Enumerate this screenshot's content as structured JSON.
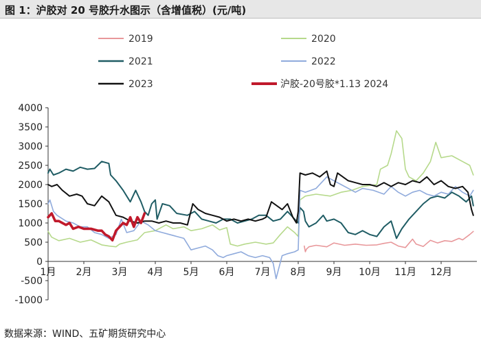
{
  "title": "图 1：沪胶对 20 号胶升水图示（含增值税）(元/吨)",
  "source": "数据来源：WIND、五矿期货研究中心",
  "chart_data": {
    "type": "line",
    "y_range": [
      -1000,
      4000
    ],
    "y_ticks": [
      "4000",
      "3500",
      "3000",
      "2500",
      "2000",
      "1500",
      "1000",
      "500",
      "0",
      "-500",
      "-1000"
    ],
    "x_range": [
      1,
      13
    ],
    "x_ticks": [
      "1月",
      "2月",
      "3月",
      "4月",
      "5月",
      "6月",
      "7月",
      "8月",
      "9月",
      "10月",
      "11月",
      "12月"
    ],
    "grid": false,
    "legend_position": "top",
    "series": [
      {
        "name": "2019",
        "color": "#e8979a",
        "width": 1.6,
        "points": [
          [
            8.17,
            400
          ],
          [
            8.2,
            250
          ],
          [
            8.23,
            320
          ],
          [
            8.3,
            380
          ],
          [
            8.5,
            420
          ],
          [
            8.8,
            380
          ],
          [
            9.0,
            480
          ],
          [
            9.3,
            420
          ],
          [
            9.6,
            450
          ],
          [
            9.9,
            420
          ],
          [
            10.2,
            430
          ],
          [
            10.4,
            470
          ],
          [
            10.6,
            500
          ],
          [
            10.8,
            400
          ],
          [
            11.0,
            360
          ],
          [
            11.2,
            580
          ],
          [
            11.3,
            450
          ],
          [
            11.5,
            390
          ],
          [
            11.7,
            550
          ],
          [
            11.9,
            480
          ],
          [
            12.1,
            540
          ],
          [
            12.3,
            520
          ],
          [
            12.5,
            600
          ],
          [
            12.6,
            560
          ],
          [
            12.8,
            700
          ],
          [
            12.9,
            780
          ]
        ]
      },
      {
        "name": "2020",
        "color": "#b6d98b",
        "width": 1.6,
        "points": [
          [
            1.0,
            780
          ],
          [
            1.1,
            630
          ],
          [
            1.3,
            540
          ],
          [
            1.6,
            600
          ],
          [
            1.9,
            500
          ],
          [
            2.2,
            560
          ],
          [
            2.5,
            430
          ],
          [
            2.7,
            400
          ],
          [
            2.9,
            380
          ],
          [
            3.0,
            450
          ],
          [
            3.2,
            500
          ],
          [
            3.5,
            560
          ],
          [
            3.7,
            750
          ],
          [
            4.0,
            800
          ],
          [
            4.3,
            950
          ],
          [
            4.5,
            850
          ],
          [
            4.8,
            900
          ],
          [
            5.0,
            800
          ],
          [
            5.3,
            850
          ],
          [
            5.6,
            950
          ],
          [
            5.8,
            820
          ],
          [
            6.0,
            880
          ],
          [
            6.1,
            450
          ],
          [
            6.3,
            400
          ],
          [
            6.5,
            450
          ],
          [
            6.8,
            500
          ],
          [
            7.1,
            450
          ],
          [
            7.3,
            480
          ],
          [
            7.5,
            700
          ],
          [
            7.7,
            900
          ],
          [
            7.9,
            750
          ],
          [
            8.0,
            650
          ],
          [
            8.05,
            1600
          ],
          [
            8.2,
            1700
          ],
          [
            8.5,
            1750
          ],
          [
            8.9,
            1700
          ],
          [
            9.2,
            1800
          ],
          [
            9.5,
            1850
          ],
          [
            9.8,
            1950
          ],
          [
            10.2,
            2000
          ],
          [
            10.3,
            2400
          ],
          [
            10.5,
            2500
          ],
          [
            10.6,
            2800
          ],
          [
            10.75,
            3400
          ],
          [
            10.9,
            3200
          ],
          [
            11.0,
            2400
          ],
          [
            11.1,
            2200
          ],
          [
            11.3,
            2100
          ],
          [
            11.5,
            2300
          ],
          [
            11.7,
            2600
          ],
          [
            11.85,
            3100
          ],
          [
            12.0,
            2700
          ],
          [
            12.3,
            2750
          ],
          [
            12.6,
            2600
          ],
          [
            12.8,
            2500
          ],
          [
            12.9,
            2250
          ]
        ]
      },
      {
        "name": "2021",
        "color": "#1f5c64",
        "width": 2.0,
        "points": [
          [
            1.0,
            2300
          ],
          [
            1.05,
            2400
          ],
          [
            1.15,
            2250
          ],
          [
            1.3,
            2300
          ],
          [
            1.5,
            2400
          ],
          [
            1.7,
            2350
          ],
          [
            1.9,
            2450
          ],
          [
            2.1,
            2400
          ],
          [
            2.3,
            2420
          ],
          [
            2.5,
            2600
          ],
          [
            2.7,
            2550
          ],
          [
            2.75,
            2250
          ],
          [
            2.9,
            2100
          ],
          [
            3.1,
            1850
          ],
          [
            3.2,
            1700
          ],
          [
            3.3,
            1550
          ],
          [
            3.45,
            1850
          ],
          [
            3.6,
            1550
          ],
          [
            3.7,
            1300
          ],
          [
            3.8,
            1200
          ],
          [
            3.9,
            1500
          ],
          [
            4.0,
            1600
          ],
          [
            4.05,
            1100
          ],
          [
            4.2,
            1500
          ],
          [
            4.4,
            1450
          ],
          [
            4.6,
            1250
          ],
          [
            4.9,
            1200
          ],
          [
            5.1,
            1300
          ],
          [
            5.3,
            1100
          ],
          [
            5.5,
            1050
          ],
          [
            5.7,
            1000
          ],
          [
            5.9,
            1100
          ],
          [
            6.1,
            1100
          ],
          [
            6.3,
            1000
          ],
          [
            6.5,
            1050
          ],
          [
            6.7,
            1100
          ],
          [
            6.9,
            1200
          ],
          [
            7.1,
            1200
          ],
          [
            7.3,
            1050
          ],
          [
            7.5,
            1100
          ],
          [
            7.7,
            1300
          ],
          [
            7.9,
            1100
          ],
          [
            8.0,
            1000
          ],
          [
            8.05,
            1400
          ],
          [
            8.15,
            1300
          ],
          [
            8.2,
            1050
          ],
          [
            8.3,
            900
          ],
          [
            8.5,
            1000
          ],
          [
            8.7,
            1200
          ],
          [
            8.8,
            1050
          ],
          [
            9.0,
            1100
          ],
          [
            9.2,
            1000
          ],
          [
            9.4,
            750
          ],
          [
            9.6,
            700
          ],
          [
            9.8,
            800
          ],
          [
            10.0,
            700
          ],
          [
            10.2,
            650
          ],
          [
            10.4,
            900
          ],
          [
            10.6,
            1050
          ],
          [
            10.75,
            600
          ],
          [
            10.9,
            850
          ],
          [
            11.1,
            1100
          ],
          [
            11.3,
            1300
          ],
          [
            11.5,
            1500
          ],
          [
            11.7,
            1650
          ],
          [
            11.9,
            1700
          ],
          [
            12.1,
            1650
          ],
          [
            12.3,
            1800
          ],
          [
            12.5,
            1700
          ],
          [
            12.7,
            1550
          ],
          [
            12.85,
            1700
          ],
          [
            12.9,
            1450
          ]
        ]
      },
      {
        "name": "2022",
        "color": "#8faadc",
        "width": 1.6,
        "points": [
          [
            1.0,
            1500
          ],
          [
            1.05,
            1600
          ],
          [
            1.15,
            1300
          ],
          [
            1.25,
            1200
          ],
          [
            1.5,
            1050
          ],
          [
            1.7,
            1000
          ],
          [
            1.9,
            900
          ],
          [
            2.1,
            900
          ],
          [
            2.3,
            750
          ],
          [
            2.5,
            700
          ],
          [
            2.7,
            600
          ],
          [
            2.9,
            700
          ],
          [
            3.05,
            1100
          ],
          [
            3.2,
            750
          ],
          [
            3.4,
            800
          ],
          [
            3.6,
            1050
          ],
          [
            3.8,
            950
          ],
          [
            4.0,
            800
          ],
          [
            4.2,
            750
          ],
          [
            4.4,
            700
          ],
          [
            4.6,
            650
          ],
          [
            4.8,
            600
          ],
          [
            5.0,
            300
          ],
          [
            5.2,
            350
          ],
          [
            5.4,
            400
          ],
          [
            5.6,
            300
          ],
          [
            5.75,
            150
          ],
          [
            5.9,
            100
          ],
          [
            6.0,
            150
          ],
          [
            6.2,
            200
          ],
          [
            6.4,
            250
          ],
          [
            6.6,
            150
          ],
          [
            6.8,
            100
          ],
          [
            7.0,
            150
          ],
          [
            7.2,
            100
          ],
          [
            7.3,
            -50
          ],
          [
            7.38,
            -450
          ],
          [
            7.45,
            -200
          ],
          [
            7.55,
            150
          ],
          [
            7.7,
            200
          ],
          [
            7.9,
            250
          ],
          [
            8.0,
            300
          ],
          [
            8.05,
            1850
          ],
          [
            8.2,
            1800
          ],
          [
            8.5,
            1900
          ],
          [
            8.8,
            2200
          ],
          [
            9.0,
            2100
          ],
          [
            9.2,
            2000
          ],
          [
            9.4,
            1900
          ],
          [
            9.6,
            1800
          ],
          [
            9.8,
            1900
          ],
          [
            10.1,
            1850
          ],
          [
            10.4,
            1750
          ],
          [
            10.6,
            1950
          ],
          [
            10.8,
            1800
          ],
          [
            11.0,
            1700
          ],
          [
            11.2,
            1800
          ],
          [
            11.4,
            1850
          ],
          [
            11.6,
            1750
          ],
          [
            11.8,
            1700
          ],
          [
            12.0,
            1800
          ],
          [
            12.2,
            1750
          ],
          [
            12.4,
            1950
          ],
          [
            12.6,
            1800
          ],
          [
            12.8,
            1700
          ],
          [
            12.9,
            1850
          ]
        ]
      },
      {
        "name": "2023",
        "color": "#111111",
        "width": 2.0,
        "points": [
          [
            1.0,
            2000
          ],
          [
            1.1,
            1950
          ],
          [
            1.25,
            2000
          ],
          [
            1.4,
            1850
          ],
          [
            1.6,
            1700
          ],
          [
            1.8,
            1750
          ],
          [
            1.95,
            1700
          ],
          [
            2.1,
            1500
          ],
          [
            2.3,
            1450
          ],
          [
            2.5,
            1700
          ],
          [
            2.7,
            1550
          ],
          [
            2.9,
            1200
          ],
          [
            3.1,
            1150
          ],
          [
            3.3,
            1050
          ],
          [
            3.5,
            1000
          ],
          [
            3.7,
            1050
          ],
          [
            3.9,
            1050
          ],
          [
            4.1,
            1000
          ],
          [
            4.3,
            1050
          ],
          [
            4.5,
            1000
          ],
          [
            4.7,
            1000
          ],
          [
            4.9,
            950
          ],
          [
            5.05,
            1500
          ],
          [
            5.2,
            1350
          ],
          [
            5.4,
            1250
          ],
          [
            5.6,
            1200
          ],
          [
            5.8,
            1150
          ],
          [
            6.0,
            1050
          ],
          [
            6.2,
            1100
          ],
          [
            6.4,
            1050
          ],
          [
            6.6,
            1100
          ],
          [
            6.8,
            1050
          ],
          [
            7.0,
            1100
          ],
          [
            7.1,
            1150
          ],
          [
            7.25,
            1550
          ],
          [
            7.4,
            1450
          ],
          [
            7.55,
            1350
          ],
          [
            7.7,
            1500
          ],
          [
            7.85,
            1150
          ],
          [
            7.95,
            1000
          ],
          [
            8.0,
            1300
          ],
          [
            8.05,
            2300
          ],
          [
            8.2,
            2250
          ],
          [
            8.4,
            2300
          ],
          [
            8.6,
            2200
          ],
          [
            8.8,
            2350
          ],
          [
            8.9,
            2000
          ],
          [
            9.0,
            1950
          ],
          [
            9.1,
            2300
          ],
          [
            9.25,
            2200
          ],
          [
            9.4,
            2100
          ],
          [
            9.6,
            2050
          ],
          [
            9.8,
            2000
          ],
          [
            10.0,
            2000
          ],
          [
            10.2,
            1950
          ],
          [
            10.4,
            2050
          ],
          [
            10.6,
            1950
          ],
          [
            10.8,
            2050
          ],
          [
            11.0,
            2000
          ],
          [
            11.2,
            2100
          ],
          [
            11.4,
            2050
          ],
          [
            11.6,
            2200
          ],
          [
            11.8,
            2000
          ],
          [
            12.0,
            2100
          ],
          [
            12.2,
            1950
          ],
          [
            12.4,
            1900
          ],
          [
            12.6,
            1950
          ],
          [
            12.75,
            1800
          ],
          [
            12.85,
            1350
          ],
          [
            12.9,
            1200
          ]
        ]
      },
      {
        "name": "沪胶-20号胶*1.13 2024",
        "color": "#c0192b",
        "width": 3.6,
        "points": [
          [
            1.0,
            1150
          ],
          [
            1.1,
            1250
          ],
          [
            1.2,
            1050
          ],
          [
            1.3,
            1050
          ],
          [
            1.4,
            1000
          ],
          [
            1.5,
            950
          ],
          [
            1.6,
            1000
          ],
          [
            1.7,
            850
          ],
          [
            1.85,
            900
          ],
          [
            2.0,
            850
          ],
          [
            2.2,
            850
          ],
          [
            2.4,
            800
          ],
          [
            2.5,
            800
          ],
          [
            2.6,
            700
          ],
          [
            2.7,
            650
          ],
          [
            2.8,
            550
          ],
          [
            2.9,
            800
          ],
          [
            3.0,
            900
          ],
          [
            3.1,
            1000
          ],
          [
            3.2,
            950
          ],
          [
            3.3,
            1150
          ],
          [
            3.4,
            900
          ],
          [
            3.5,
            1150
          ],
          [
            3.6,
            1000
          ],
          [
            3.7,
            1250
          ]
        ]
      }
    ]
  }
}
